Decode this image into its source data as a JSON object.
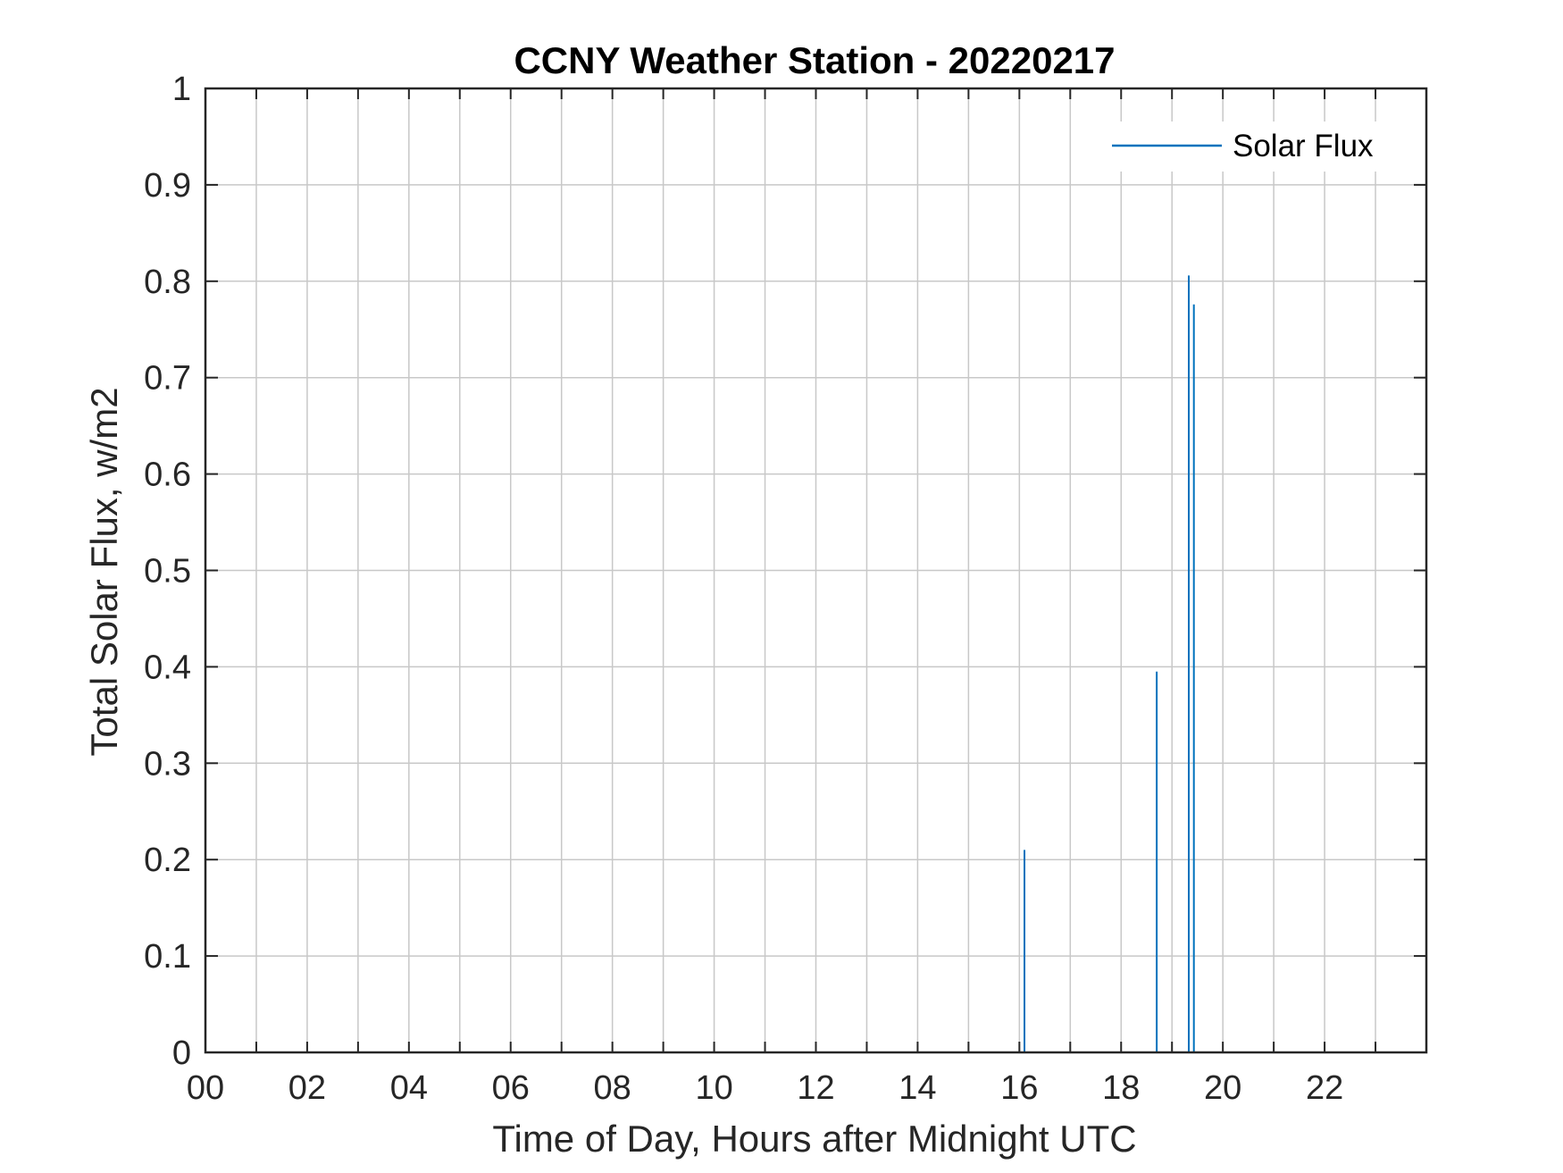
{
  "chart_data": {
    "type": "line",
    "title": "CCNY Weather Station - 20220217",
    "xlabel": "Time of Day, Hours after Midnight UTC",
    "ylabel": "Total Solar Flux, w/m2",
    "xlim": [
      0,
      24
    ],
    "ylim": [
      0,
      1
    ],
    "xticks": [
      0,
      2,
      4,
      6,
      8,
      10,
      12,
      14,
      16,
      18,
      20,
      22
    ],
    "xtick_labels": [
      "00",
      "02",
      "04",
      "06",
      "08",
      "10",
      "12",
      "14",
      "16",
      "18",
      "20",
      "22"
    ],
    "x_minor_grid": [
      1,
      3,
      5,
      7,
      9,
      11,
      13,
      15,
      17,
      19,
      21,
      23
    ],
    "yticks": [
      0,
      0.1,
      0.2,
      0.3,
      0.4,
      0.5,
      0.6,
      0.7,
      0.8,
      0.9,
      1
    ],
    "ytick_labels": [
      "0",
      "0.1",
      "0.2",
      "0.3",
      "0.4",
      "0.5",
      "0.6",
      "0.7",
      "0.8",
      "0.9",
      "1"
    ],
    "grid": true,
    "legend_position": "top-right",
    "series": [
      {
        "name": "Solar Flux",
        "color": "#0072BD",
        "x": [
          16.1,
          18.7,
          19.33,
          19.43
        ],
        "y": [
          0.21,
          0.395,
          0.806,
          0.776
        ]
      }
    ]
  }
}
